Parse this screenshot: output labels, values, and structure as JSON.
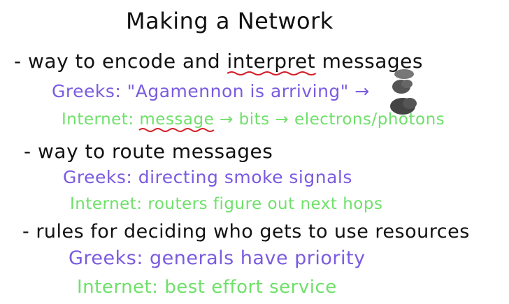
{
  "title": "Making a Network",
  "sections": [
    {
      "heading": "- way to encode and",
      "heading_emph": "interpret",
      "heading_tail": "messages",
      "greeks_prefix": "Greeks: \"Agamennon is arriving\" →",
      "internet_prefix": "Internet:",
      "internet_emph": "message",
      "internet_tail": "→ bits → electrons/photons"
    },
    {
      "heading": "- way to route messages",
      "greeks": "Greeks: directing smoke signals",
      "internet": "Internet: routers figure out next hops"
    },
    {
      "heading": "- rules for deciding who gets to use resources",
      "greeks": "Greeks: generals have priority",
      "internet": "Internet: best effort service"
    }
  ],
  "colors": {
    "ink": "#111111",
    "greeks": "#7a5be0",
    "internet": "#6fe06a",
    "underline": "#d4202a",
    "smoke": "#555555"
  },
  "icons": {
    "smoke_signal": "smoke-signal-icon"
  }
}
